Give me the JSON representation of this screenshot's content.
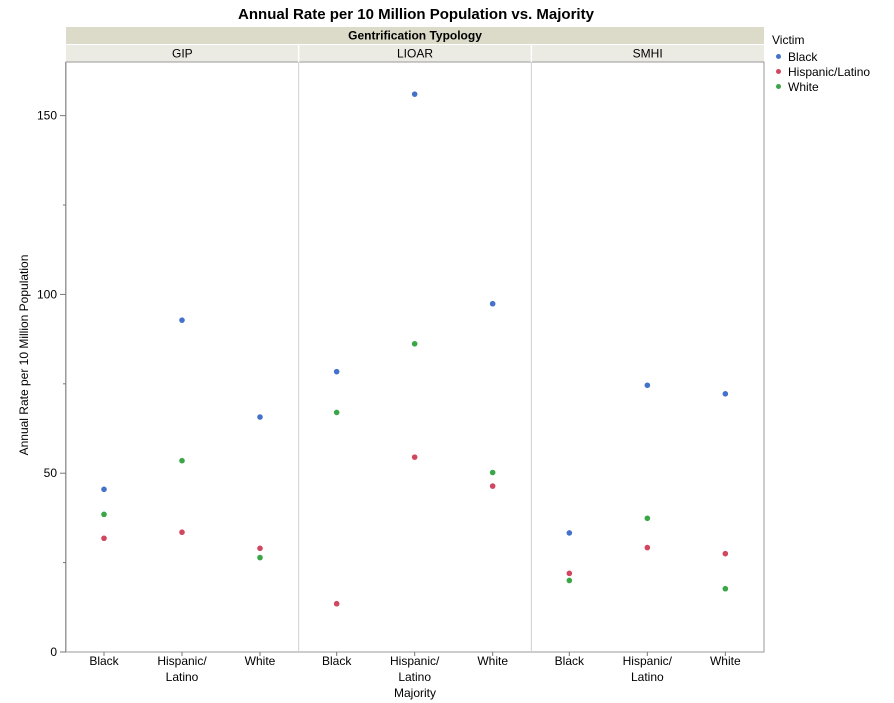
{
  "chart_data": {
    "type": "scatter",
    "title": "Annual Rate per 10 Million Population vs. Majority",
    "xlabel": "Majority",
    "ylabel": "Annual Rate per 10 Million Population",
    "group_header": "Gentrification Typology",
    "groups": [
      "GIP",
      "LIOAR",
      "SMHI"
    ],
    "categories": [
      "Black",
      "Hispanic/\nLatino",
      "White"
    ],
    "ylim": [
      0,
      165
    ],
    "yticks": [
      0,
      50,
      100,
      150
    ],
    "legend_title": "Victim",
    "legend_position": "right",
    "series": [
      {
        "name": "Black",
        "color": "#4472CA",
        "values": {
          "GIP": [
            45.5,
            92.8,
            65.7
          ],
          "LIOAR": [
            78.4,
            156.0,
            97.4
          ],
          "SMHI": [
            33.3,
            74.6,
            72.2
          ]
        }
      },
      {
        "name": "Hispanic/Latino",
        "color": "#D1475F",
        "values": {
          "GIP": [
            31.8,
            33.5,
            29.0
          ],
          "LIOAR": [
            13.5,
            54.5,
            46.4
          ],
          "SMHI": [
            22.0,
            29.2,
            27.5
          ]
        }
      },
      {
        "name": "White",
        "color": "#3AA648",
        "values": {
          "GIP": [
            38.5,
            53.5,
            26.4
          ],
          "LIOAR": [
            67.0,
            86.2,
            50.2
          ],
          "SMHI": [
            20.0,
            37.4,
            17.7
          ]
        }
      }
    ]
  }
}
